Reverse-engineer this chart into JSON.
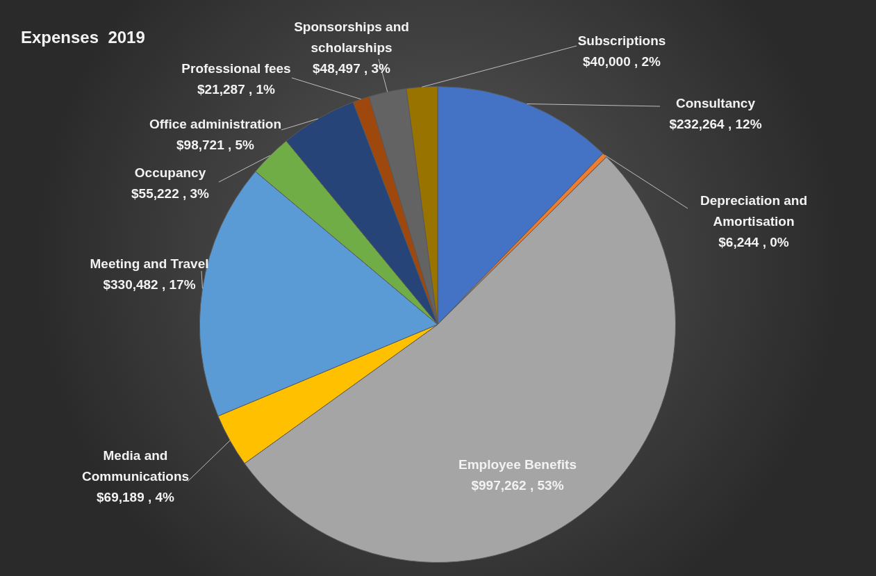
{
  "chart_data": {
    "type": "pie",
    "title": "Expenses  2019",
    "categories": [
      "Consultancy",
      "Depreciation and\nAmortisation",
      "Employee Benefits",
      "Media and\nCommunications",
      "Meeting and Travel",
      "Occupancy",
      "Office administration",
      "Professional fees",
      "Sponsorships and\nscholarships",
      "Subscriptions"
    ],
    "values": [
      232264,
      6244,
      997262,
      69189,
      330482,
      55222,
      98721,
      21287,
      48497,
      40000
    ],
    "value_labels": [
      "$232,264 , 12%",
      "$6,244 , 0%",
      "$997,262 , 53%",
      "$69,189 , 4%",
      "$330,482 , 17%",
      "$55,222 , 3%",
      "$98,721 , 5%",
      "$21,287 , 1%",
      "$48,497 , 3%",
      "$40,000 , 2%"
    ],
    "colors": [
      "#4472c4",
      "#ed7d31",
      "#a5a5a5",
      "#ffc000",
      "#5b9bd5",
      "#70ad47",
      "#264478",
      "#9e480e",
      "#636363",
      "#997300"
    ],
    "legend": false
  }
}
